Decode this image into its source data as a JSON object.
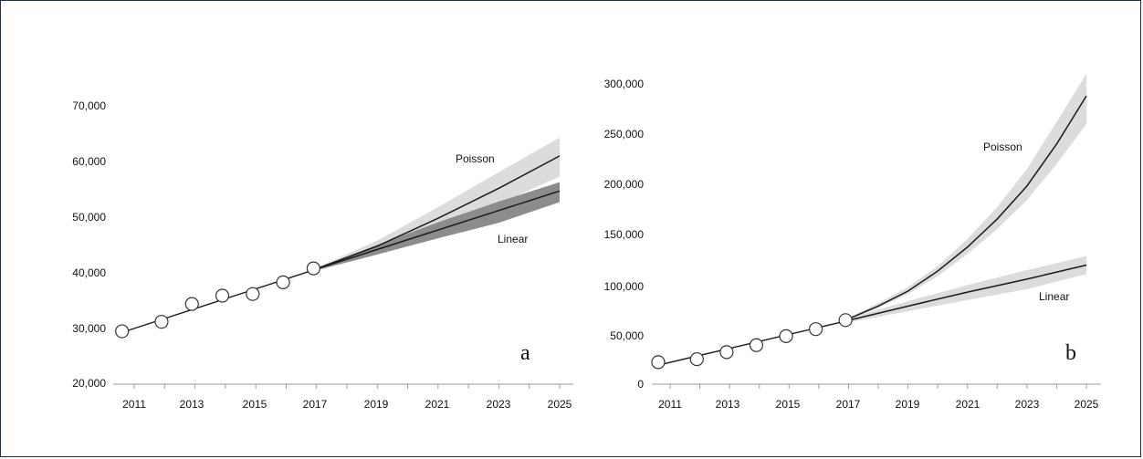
{
  "chart_data": [
    {
      "type": "line",
      "panel_label": "a",
      "x_range": [
        2011,
        2025
      ],
      "ylim": [
        20000,
        70000
      ],
      "x_ticks": [
        "2011",
        "2013",
        "2015",
        "2017",
        "2019",
        "2021",
        "2023",
        "2025"
      ],
      "y_ticks": [
        "20,000",
        "30,000",
        "40,000",
        "50,000",
        "60,000",
        "70,000"
      ],
      "grid": false,
      "observed": {
        "x": [
          2010.6,
          2011.9,
          2012.9,
          2013.9,
          2014.9,
          2015.9,
          2016.9
        ],
        "y": [
          29500,
          31200,
          34400,
          35900,
          36200,
          38300,
          40800
        ]
      },
      "fit_history": {
        "x": [
          2010.6,
          2016.9
        ],
        "y": [
          29300,
          40500
        ]
      },
      "series": [
        {
          "name": "Poisson",
          "x": [
            2016.9,
            2019,
            2021,
            2023,
            2025
          ],
          "y": [
            40500,
            44800,
            49800,
            55200,
            61000
          ],
          "lower": [
            40300,
            43800,
            47900,
            52400,
            57300
          ],
          "upper": [
            40700,
            45800,
            51800,
            58100,
            64300
          ]
        },
        {
          "name": "Linear",
          "x": [
            2016.9,
            2019,
            2021,
            2023,
            2025
          ],
          "y": [
            40500,
            44200,
            47700,
            51200,
            54700
          ],
          "lower": [
            40300,
            43300,
            46200,
            49000,
            52700
          ],
          "upper": [
            40700,
            45000,
            49100,
            52800,
            56300
          ]
        }
      ],
      "labels": {
        "poisson": "Poisson",
        "linear": "Linear"
      },
      "colors": {
        "poisson_band": "#dcdcdc",
        "linear_band": "#8c8c8c",
        "line": "#1a1a1a"
      }
    },
    {
      "type": "line",
      "panel_label": "b",
      "x_range": [
        2011,
        2025
      ],
      "ylim": [
        0,
        300000
      ],
      "x_ticks": [
        "2011",
        "2013",
        "2015",
        "2017",
        "2019",
        "2021",
        "2023",
        "2025"
      ],
      "y_ticks": [
        "0",
        "50,000",
        "100,000",
        "150,000",
        "200,000",
        "250,000",
        "300,000"
      ],
      "grid": false,
      "observed": {
        "x": [
          2010.6,
          2011.9,
          2012.9,
          2013.9,
          2014.9,
          2015.9,
          2016.9
        ],
        "y": [
          22000,
          25000,
          32000,
          39000,
          48000,
          55000,
          64000
        ]
      },
      "fit_history": {
        "x": [
          2010.6,
          2016.9
        ],
        "y": [
          19000,
          63000
        ]
      },
      "series": [
        {
          "name": "Poisson",
          "x": [
            2016.9,
            2018,
            2019,
            2020,
            2021,
            2022,
            2023,
            2024,
            2025
          ],
          "y": [
            64000,
            78000,
            93000,
            113000,
            137000,
            165000,
            198000,
            240000,
            288000
          ],
          "lower": [
            63000,
            76000,
            90000,
            108000,
            130000,
            155000,
            184000,
            220000,
            260000
          ],
          "upper": [
            65000,
            81000,
            97000,
            118000,
            145000,
            177000,
            215000,
            262000,
            310000
          ]
        },
        {
          "name": "Linear",
          "x": [
            2016.9,
            2019,
            2021,
            2023,
            2025
          ],
          "y": [
            63000,
            78000,
            92000,
            105000,
            119000
          ],
          "lower": [
            61000,
            73000,
            84000,
            95000,
            110000
          ],
          "upper": [
            65000,
            83000,
            99000,
            114000,
            128000
          ]
        }
      ],
      "labels": {
        "poisson": "Poisson",
        "linear": "Linear"
      },
      "colors": {
        "poisson_band": "#dcdcdc",
        "linear_band": "#dcdcdc",
        "line": "#1a1a1a"
      }
    }
  ]
}
